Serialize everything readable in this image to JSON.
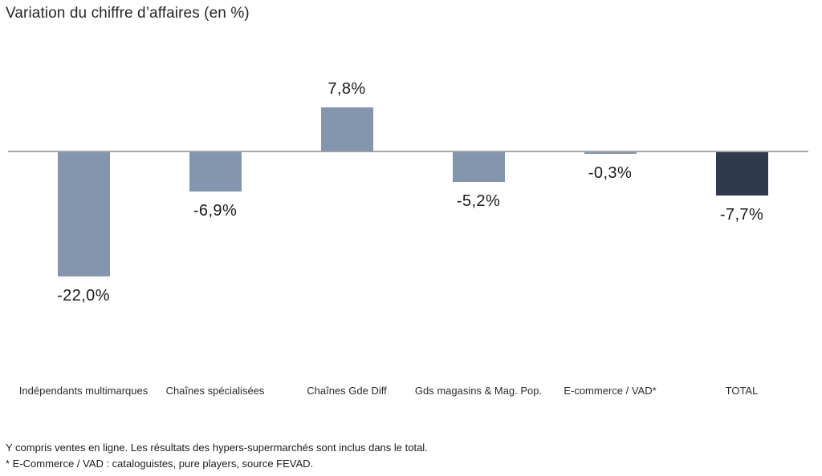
{
  "chart_data": {
    "type": "bar",
    "title": "Variation du chiffre d’affaires (en %)",
    "categories": [
      "Indépendants multimarques",
      "Chaînes spécialisées",
      "Chaînes Gde Diff",
      "Gds magasins & Mag. Pop.",
      "E-commerce / VAD*",
      "TOTAL"
    ],
    "values": [
      -22.0,
      -6.9,
      7.8,
      -5.2,
      -0.3,
      -7.7
    ],
    "value_labels": [
      "-22,0%",
      "-6,9%",
      "7,8%",
      "-5,2%",
      "-0,3%",
      "-7,7%"
    ],
    "bar_colors": [
      "#8495AE",
      "#8495AE",
      "#8495AE",
      "#8495AE",
      "#8495AE",
      "#2E3A4D"
    ],
    "baseline_color": "#a9a9a9",
    "unit": "%",
    "xlabel": "",
    "ylabel": "",
    "ylim": [
      -24,
      10
    ],
    "grid": false,
    "legend": false
  },
  "footnotes": {
    "line1": "Y compris ventes en ligne. Les résultats des hypers-supermarchés sont inclus dans le total.",
    "line2": "* E-Commerce / VAD : cataloguistes, pure players, source FEVAD."
  }
}
